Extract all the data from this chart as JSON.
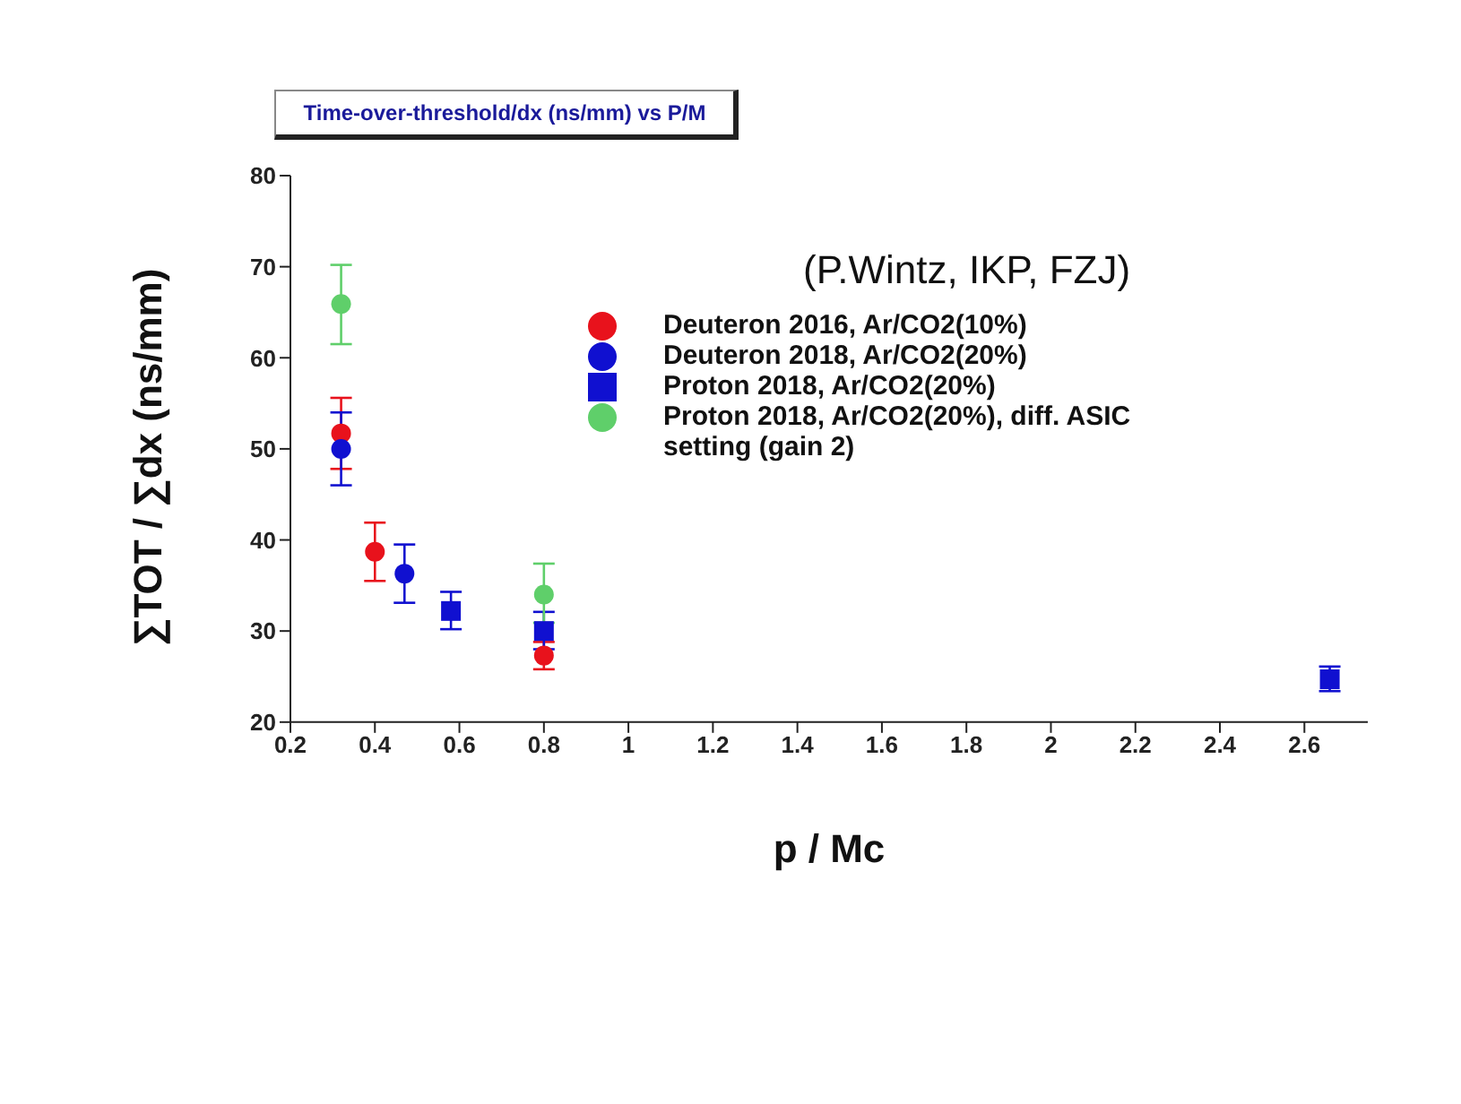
{
  "chart_data": {
    "type": "scatter",
    "title": "Time-over-threshold/dx (ns/mm) vs P/M",
    "xlabel": "p / Mc",
    "ylabel": "∑TOT / ∑dx (ns/mm)",
    "annotations": [
      "(P.Wintz, IKP, FZJ)"
    ],
    "xlim": [
      0.2,
      2.75
    ],
    "xticks": [
      0.2,
      0.4,
      0.6,
      0.8,
      1,
      1.2,
      1.4,
      1.6,
      1.8,
      2,
      2.2,
      2.4,
      2.6
    ],
    "ylim": [
      20,
      80
    ],
    "yticks": [
      20,
      30,
      40,
      50,
      60,
      70,
      80
    ],
    "grid": false,
    "legend": "top right",
    "series": [
      {
        "name": "Deuteron 2016, Ar/CO2(10%)",
        "color": "#e8121c",
        "marker": "circle",
        "x": [
          0.32,
          0.4,
          0.8
        ],
        "values": [
          51.7,
          38.7,
          27.3
        ],
        "errors": [
          [
            47.8,
            55.6
          ],
          [
            35.5,
            41.9
          ],
          [
            25.8,
            28.8
          ]
        ]
      },
      {
        "name": "Deuteron 2018, Ar/CO2(20%)",
        "color": "#1010d0",
        "marker": "circle",
        "x": [
          0.32,
          0.47
        ],
        "values": [
          50,
          36.3
        ],
        "errors": [
          [
            46,
            54
          ],
          [
            33.1,
            39.5
          ]
        ]
      },
      {
        "name": "Proton 2018, Ar/CO2(20%)",
        "color": "#1010d0",
        "marker": "square",
        "x": [
          0.58,
          0.8,
          2.66
        ],
        "values": [
          32.2,
          30,
          24.7
        ],
        "errors": [
          [
            30.2,
            34.3
          ],
          [
            28,
            32.1
          ],
          [
            23.4,
            26.1
          ]
        ]
      },
      {
        "name": "Proton 2018, Ar/CO2(20%), diff. ASIC setting (gain 2)",
        "color": "#5fcf6a",
        "marker": "circle",
        "x": [
          0.32,
          0.8
        ],
        "values": [
          65.9,
          34
        ],
        "errors": [
          [
            61.5,
            70.2
          ],
          [
            30.9,
            37.4
          ]
        ]
      }
    ]
  }
}
